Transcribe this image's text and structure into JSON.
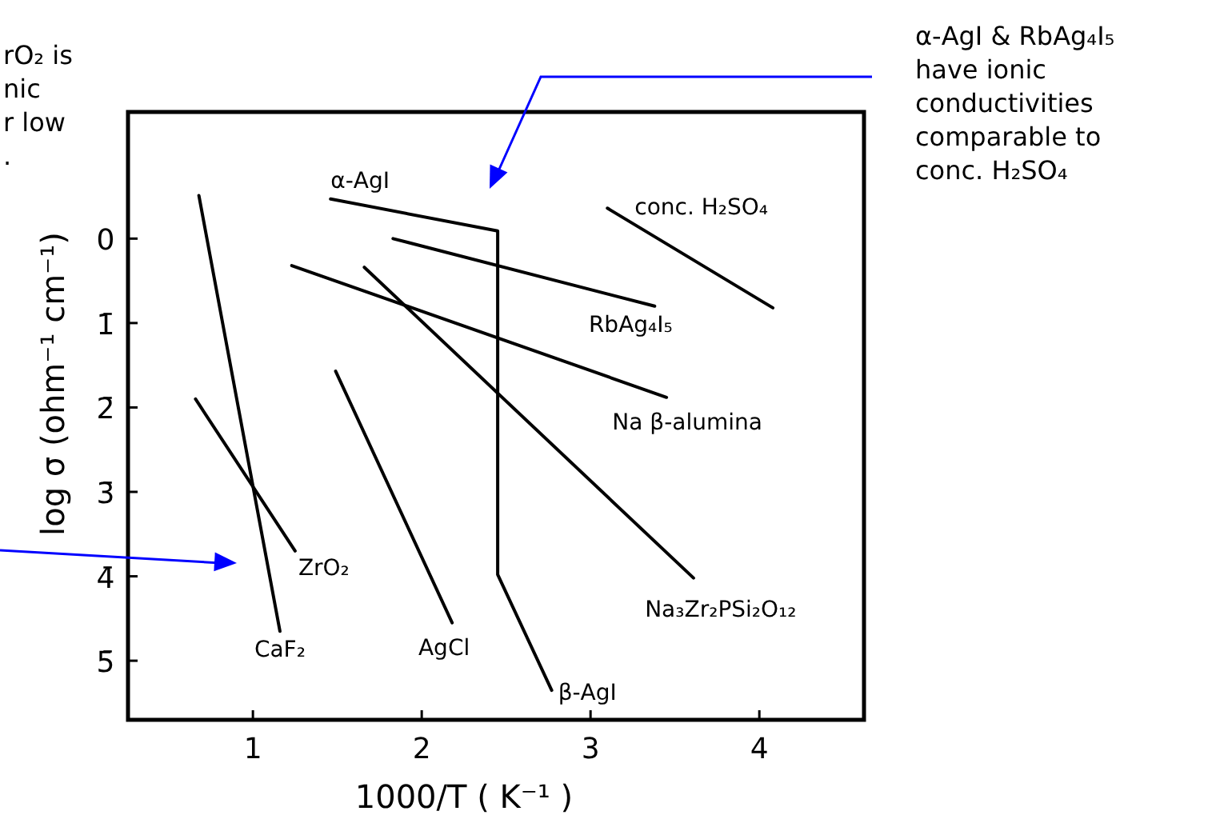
{
  "chart_data": {
    "type": "line",
    "xlabel": "1000/T ( K⁻¹ )",
    "ylabel": "log σ (ohm⁻¹ cm⁻¹)",
    "xlim": [
      0.26,
      4.62
    ],
    "xticks": [
      1,
      2,
      3,
      4
    ],
    "ylim": [
      -5.7,
      1.5
    ],
    "yticks": [
      {
        "value": 0,
        "label": "0"
      },
      {
        "value": -1,
        "label": "1̄"
      },
      {
        "value": -2,
        "label": "2̄"
      },
      {
        "value": -3,
        "label": "3̄"
      },
      {
        "value": -4,
        "label": "4̄"
      },
      {
        "value": -5,
        "label": "5̄"
      }
    ],
    "grid": false,
    "series": [
      {
        "name": "α-AgI",
        "color": "#000000",
        "x": [
          1.46,
          2.45,
          2.45,
          2.77
        ],
        "values": [
          0.47,
          0.09,
          -3.98,
          -5.35
        ]
      },
      {
        "name": "RbAg₄I₅",
        "color": "#000000",
        "x": [
          1.83,
          3.38
        ],
        "values": [
          0.0,
          -0.8
        ]
      },
      {
        "name": "Na β-alumina",
        "color": "#000000",
        "x": [
          1.23,
          3.45
        ],
        "values": [
          -0.32,
          -1.88
        ]
      },
      {
        "name": "Na₃Zr₂PSi₂O₁₂",
        "color": "#000000",
        "x": [
          1.66,
          3.61
        ],
        "values": [
          -0.34,
          -4.02
        ]
      },
      {
        "name": "conc. H₂SO₄",
        "color": "#000000",
        "x": [
          3.1,
          4.08
        ],
        "values": [
          0.36,
          -0.82
        ]
      },
      {
        "name": "CaF₂",
        "color": "#000000",
        "x": [
          0.68,
          1.16
        ],
        "values": [
          0.51,
          -4.65
        ]
      },
      {
        "name": "ZrO₂",
        "color": "#000000",
        "x": [
          0.66,
          1.25
        ],
        "values": [
          -1.9,
          -3.7
        ]
      },
      {
        "name": "AgCl",
        "color": "#000000",
        "x": [
          1.49,
          2.18
        ],
        "values": [
          -1.57,
          -4.55
        ]
      }
    ],
    "annotations": [
      {
        "text": "β-AgI",
        "x": 2.77,
        "y": -5.35
      },
      "rO₂ is\nnic\nr low\n.",
      "α-AgI & RbAg₄I₅\nhave ionic\nconductivities\ncomparable to\nconc. H₂SO₄"
    ]
  }
}
